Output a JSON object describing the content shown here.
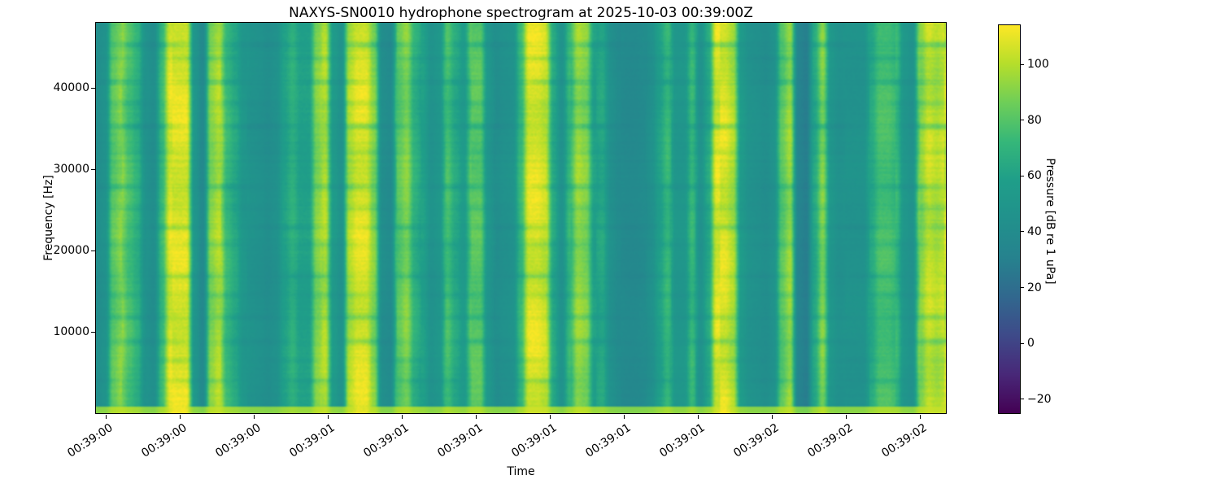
{
  "chart_data": {
    "type": "heatmap",
    "subtype": "spectrogram",
    "title": "NAXYS-SN0010 hydrophone spectrogram at 2025-10-03 00:39:00Z",
    "xlabel": "Time",
    "ylabel": "Frequency [Hz]",
    "colorbar_label": "Pressure [dB re 1 uPa]",
    "colormap": "viridis",
    "colormap_stops": [
      "#440154",
      "#482878",
      "#3e4a89",
      "#31688e",
      "#26828e",
      "#21918c",
      "#1f9e89",
      "#35b779",
      "#6ece58",
      "#b5de2b",
      "#fde725"
    ],
    "grid": false,
    "legend": "colorbar-right",
    "x_tick_labels": [
      "00:39:00",
      "00:39:00",
      "00:39:00",
      "00:39:01",
      "00:39:01",
      "00:39:01",
      "00:39:01",
      "00:39:01",
      "00:39:01",
      "00:39:02",
      "00:39:02",
      "00:39:02"
    ],
    "y_ticks": [
      {
        "value": 10000,
        "label": "10000"
      },
      {
        "value": 20000,
        "label": "20000"
      },
      {
        "value": 30000,
        "label": "30000"
      },
      {
        "value": 40000,
        "label": "40000"
      }
    ],
    "y_range_hz": [
      0,
      48000
    ],
    "colorbar_ticks": [
      {
        "value": 100,
        "label": "100"
      },
      {
        "value": 80,
        "label": "80"
      },
      {
        "value": 60,
        "label": "60"
      },
      {
        "value": 40,
        "label": "40"
      },
      {
        "value": 20,
        "label": "20"
      },
      {
        "value": 0,
        "label": "0"
      },
      {
        "value": -20,
        "label": "−20"
      }
    ],
    "color_range_db": [
      -25,
      114
    ],
    "intensity_db_levels": {
      "dark_gap": 29,
      "teal_background": 45,
      "bright_band": 112
    },
    "time_envelope": [
      0.25,
      0.3,
      0.7,
      0.8,
      0.65,
      0.55,
      0.3,
      0.25,
      0.6,
      1.0,
      1.0,
      1.0,
      0.35,
      0.2,
      0.8,
      0.9,
      0.6,
      0.5,
      0.35,
      0.3,
      0.28,
      0.25,
      0.28,
      0.45,
      0.55,
      0.45,
      0.45,
      0.8,
      0.9,
      0.4,
      0.3,
      0.9,
      1.0,
      1.0,
      0.8,
      0.25,
      0.22,
      0.7,
      0.8,
      0.55,
      0.45,
      0.3,
      0.35,
      0.65,
      0.5,
      0.4,
      0.7,
      0.7,
      0.35,
      0.25,
      0.28,
      0.3,
      0.6,
      1.0,
      1.0,
      0.95,
      0.5,
      0.3,
      0.6,
      0.85,
      0.8,
      0.45,
      0.5,
      0.28,
      0.22,
      0.2,
      0.2,
      0.22,
      0.28,
      0.45,
      0.6,
      0.35,
      0.35,
      0.6,
      0.3,
      0.5,
      1.0,
      1.0,
      0.9,
      0.4,
      0.3,
      0.28,
      0.25,
      0.3,
      0.7,
      0.85,
      0.15,
      0.1,
      0.5,
      0.8,
      0.35,
      0.28,
      0.3,
      0.3,
      0.3,
      0.5,
      0.65,
      0.65,
      0.6,
      0.35,
      0.3,
      0.8,
      0.95,
      0.9,
      0.95
    ],
    "interference_lines": [
      {
        "pos": 0.055,
        "depth": 0.2
      },
      {
        "pos": 0.09,
        "depth": 0.12
      },
      {
        "pos": 0.15,
        "depth": 0.18
      },
      {
        "pos": 0.205,
        "depth": 0.1
      },
      {
        "pos": 0.265,
        "depth": 0.22
      },
      {
        "pos": 0.33,
        "depth": 0.1
      },
      {
        "pos": 0.42,
        "depth": 0.18
      },
      {
        "pos": 0.475,
        "depth": 0.1
      },
      {
        "pos": 0.525,
        "depth": 0.15
      },
      {
        "pos": 0.567,
        "depth": 0.12
      },
      {
        "pos": 0.65,
        "depth": 0.16
      },
      {
        "pos": 0.7,
        "depth": 0.1
      },
      {
        "pos": 0.754,
        "depth": 0.14
      },
      {
        "pos": 0.817,
        "depth": 0.18
      },
      {
        "pos": 0.868,
        "depth": 0.12
      },
      {
        "pos": 0.92,
        "depth": 0.15
      }
    ]
  }
}
